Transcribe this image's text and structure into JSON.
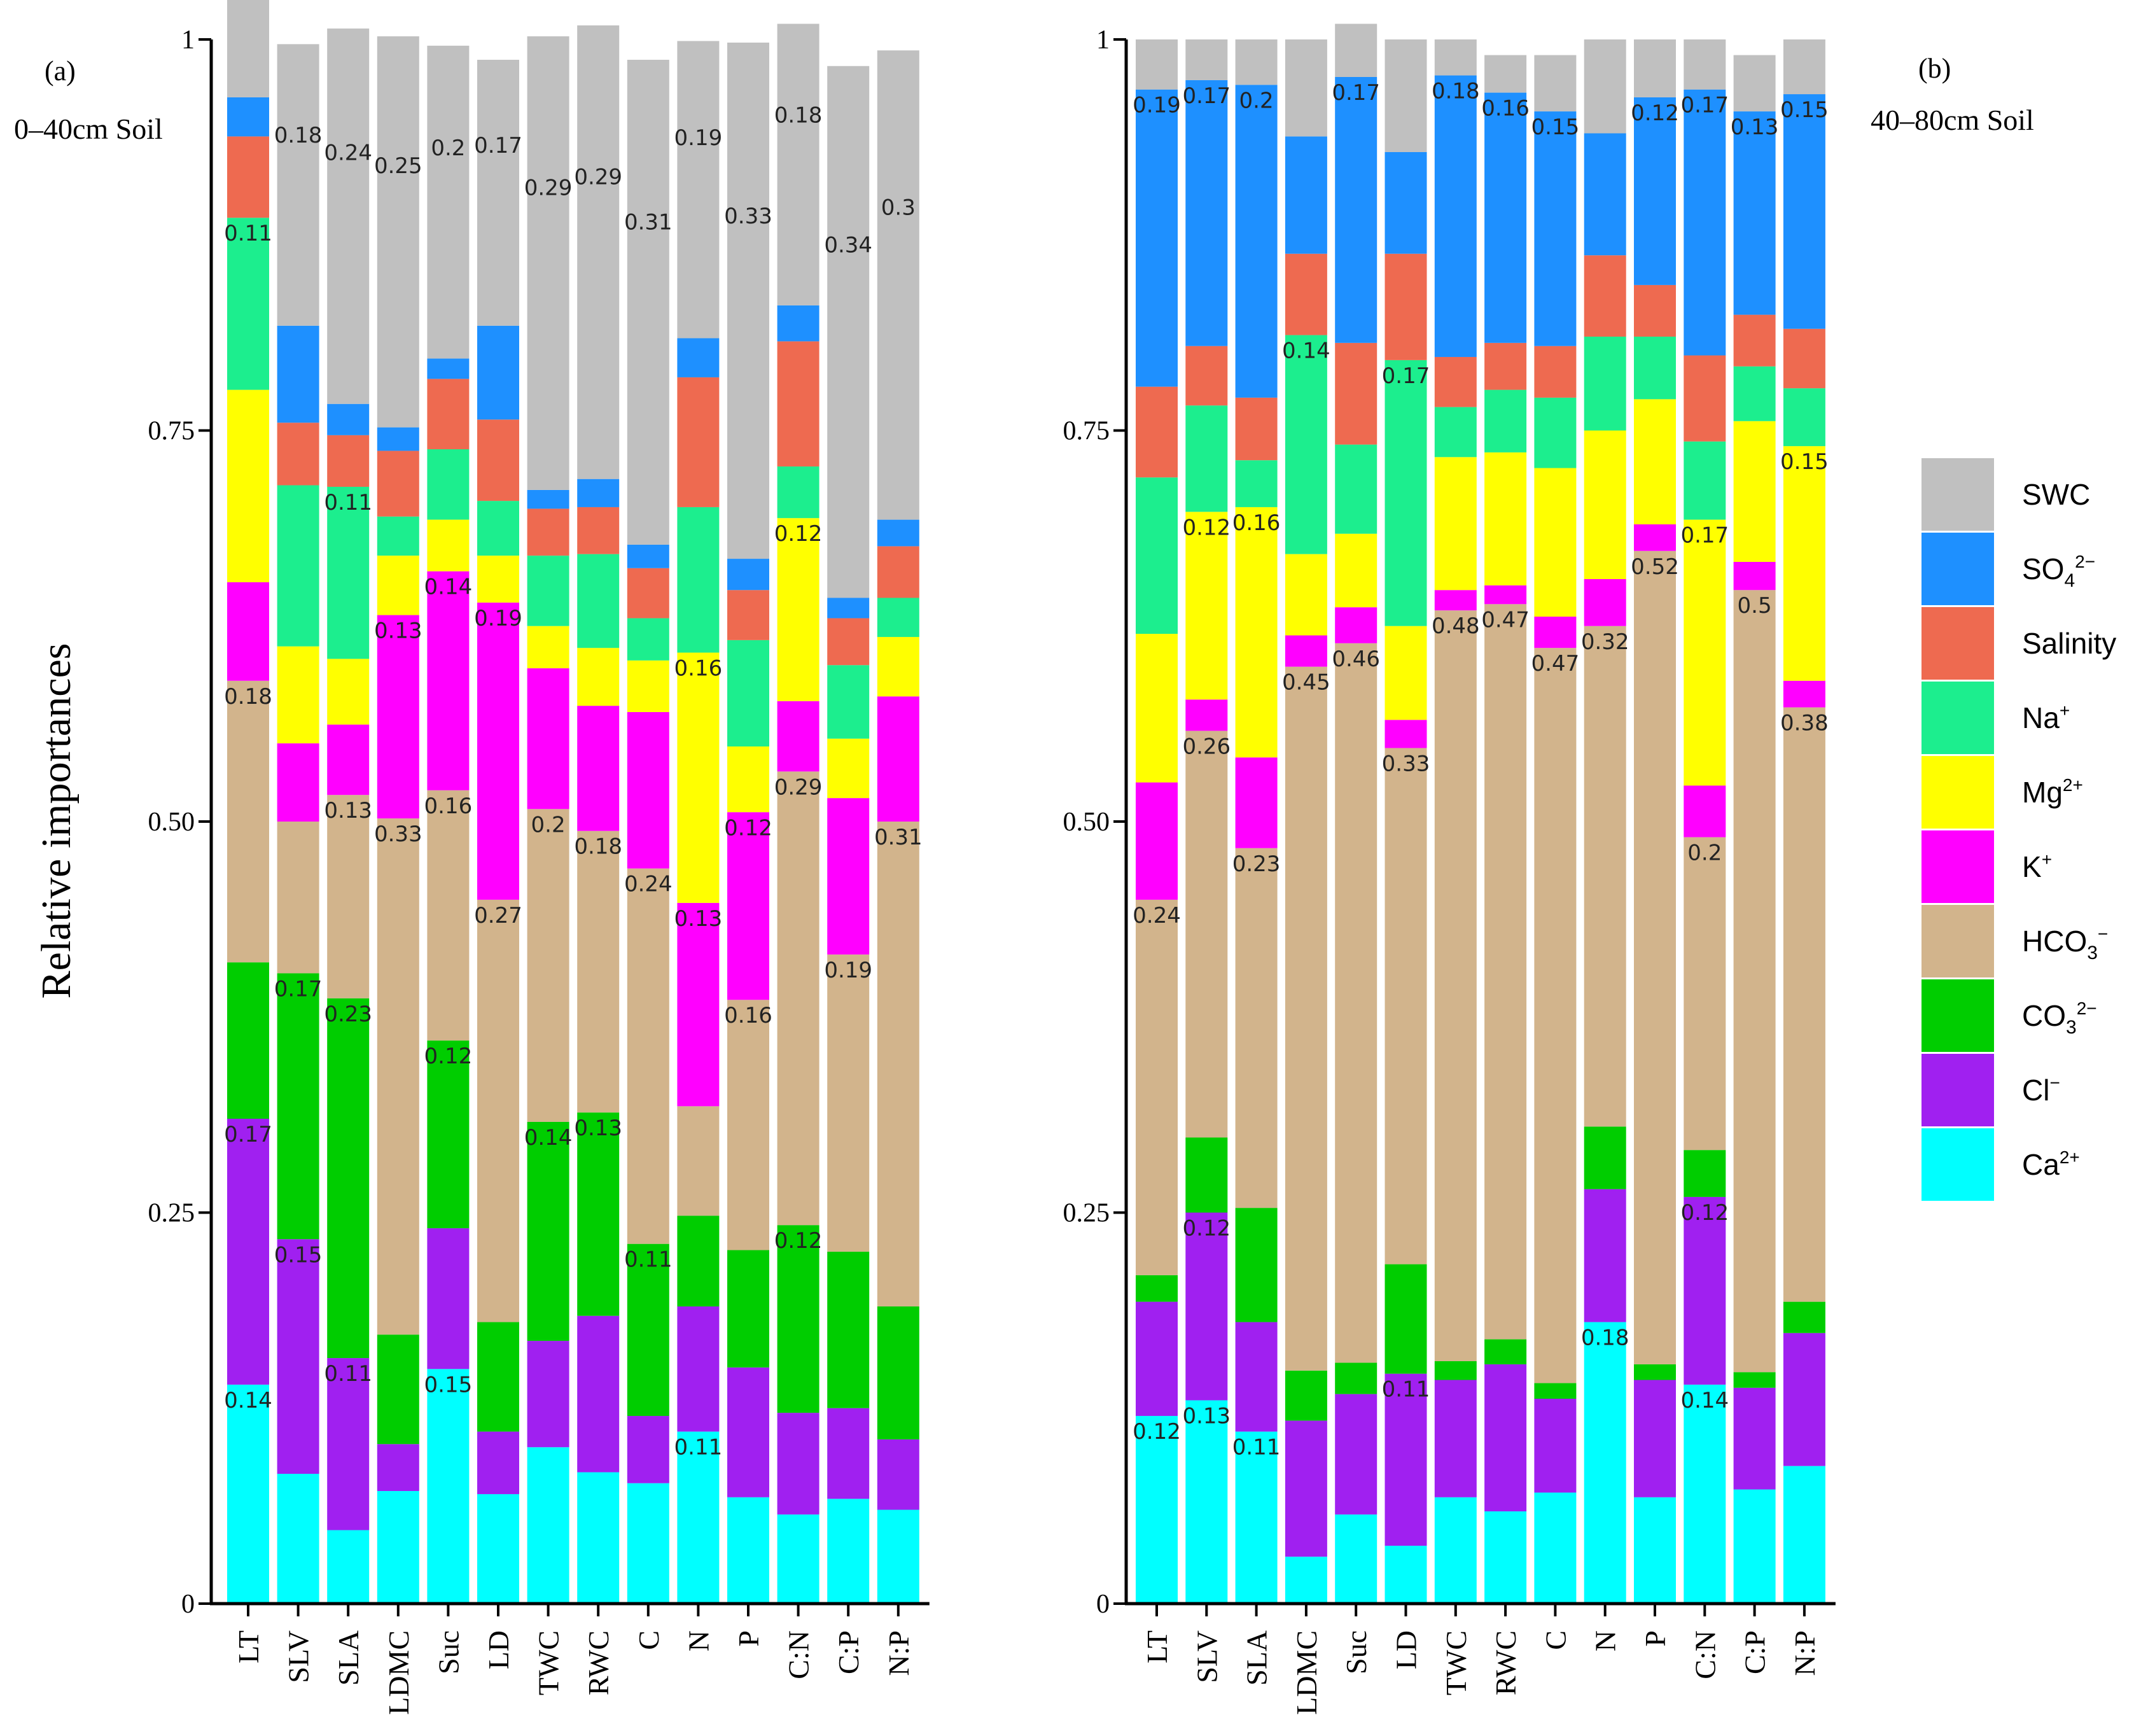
{
  "ylabel": "Relative importances",
  "legend": [
    "SWC",
    "SO4 2−",
    "Salinity",
    "Na+",
    "Mg2+",
    "K+",
    "HCO3 −",
    "CO3 2−",
    "Cl−",
    "Ca2+"
  ],
  "chart_data": [
    {
      "type": "bar",
      "stacked": true,
      "panel_label": "(a)",
      "depth_label": "0–40cm Soil",
      "ylabel": "Relative importances",
      "ylim": [
        0,
        1
      ],
      "yticks": [
        "0",
        "0.25",
        "0.50",
        "0.75",
        "1"
      ],
      "categories": [
        "LT",
        "SLV",
        "SLA",
        "LDMC",
        "Suc",
        "LD",
        "TWC",
        "RWC",
        "C",
        "N",
        "P",
        "C:N",
        "C:P",
        "N:P"
      ],
      "series": [
        {
          "name": "Ca2+",
          "color": "#00ffff",
          "values": [
            0.14,
            0.083,
            0.047,
            0.072,
            0.15,
            0.07,
            0.1,
            0.084,
            0.077,
            0.11,
            0.068,
            0.057,
            0.067,
            0.06
          ]
        },
        {
          "name": "Cl−",
          "color": "#a020f0",
          "values": [
            0.17,
            0.15,
            0.11,
            0.03,
            0.09,
            0.04,
            0.068,
            0.1,
            0.043,
            0.08,
            0.083,
            0.065,
            0.058,
            0.045
          ]
        },
        {
          "name": "CO3 2−",
          "color": "#00cd00",
          "values": [
            0.1,
            0.17,
            0.23,
            0.07,
            0.12,
            0.07,
            0.14,
            0.13,
            0.11,
            0.058,
            0.075,
            0.12,
            0.1,
            0.085
          ]
        },
        {
          "name": "HCO3 −",
          "color": "#d2b48c",
          "values": [
            0.18,
            0.097,
            0.13,
            0.33,
            0.16,
            0.27,
            0.2,
            0.18,
            0.24,
            0.07,
            0.16,
            0.29,
            0.19,
            0.31
          ]
        },
        {
          "name": "K+",
          "color": "#ff00ff",
          "values": [
            0.063,
            0.05,
            0.045,
            0.13,
            0.14,
            0.19,
            0.09,
            0.08,
            0.1,
            0.13,
            0.12,
            0.045,
            0.1,
            0.08
          ]
        },
        {
          "name": "Mg2+",
          "color": "#ffff00",
          "values": [
            0.123,
            0.062,
            0.042,
            0.038,
            0.033,
            0.03,
            0.027,
            0.037,
            0.033,
            0.16,
            0.042,
            0.117,
            0.038,
            0.038
          ]
        },
        {
          "name": "Na+",
          "color": "#1cee8e",
          "values": [
            0.11,
            0.103,
            0.11,
            0.025,
            0.045,
            0.035,
            0.045,
            0.06,
            0.027,
            0.093,
            0.068,
            0.033,
            0.047,
            0.025
          ]
        },
        {
          "name": "Salinity",
          "color": "#ee6a50",
          "values": [
            0.052,
            0.04,
            0.033,
            0.042,
            0.045,
            0.052,
            0.03,
            0.03,
            0.032,
            0.083,
            0.032,
            0.08,
            0.03,
            0.033
          ]
        },
        {
          "name": "SO4 2−",
          "color": "#1e90ff",
          "values": [
            0.025,
            0.062,
            0.02,
            0.015,
            0.013,
            0.06,
            0.012,
            0.018,
            0.015,
            0.025,
            0.02,
            0.023,
            0.013,
            0.017
          ]
        },
        {
          "name": "SWC",
          "color": "#c0c0c0",
          "values": [
            0.11,
            0.18,
            0.24,
            0.25,
            0.2,
            0.17,
            0.29,
            0.29,
            0.31,
            0.19,
            0.33,
            0.18,
            0.34,
            0.3
          ]
        }
      ],
      "data_labels": [
        {
          "category": "LT",
          "series": "Ca2+",
          "text": "0.14"
        },
        {
          "category": "LT",
          "series": "Cl−",
          "text": "0.17"
        },
        {
          "category": "LT",
          "series": "HCO3 −",
          "text": "0.18"
        },
        {
          "category": "LT",
          "series": "Na+",
          "text": "0.11"
        },
        {
          "category": "SLV",
          "series": "Cl−",
          "text": "0.15"
        },
        {
          "category": "SLV",
          "series": "CO3 2−",
          "text": "0.17"
        },
        {
          "category": "SLV",
          "series": "SWC",
          "text": "0.18"
        },
        {
          "category": "SLA",
          "series": "Cl−",
          "text": "0.11"
        },
        {
          "category": "SLA",
          "series": "CO3 2−",
          "text": "0.23"
        },
        {
          "category": "SLA",
          "series": "HCO3 −",
          "text": "0.13"
        },
        {
          "category": "SLA",
          "series": "Na+",
          "text": "0.11"
        },
        {
          "category": "SLA",
          "series": "SWC",
          "text": "0.24"
        },
        {
          "category": "LDMC",
          "series": "HCO3 −",
          "text": "0.33"
        },
        {
          "category": "LDMC",
          "series": "K+",
          "text": "0.13"
        },
        {
          "category": "LDMC",
          "series": "SWC",
          "text": "0.25"
        },
        {
          "category": "Suc",
          "series": "Ca2+",
          "text": "0.15"
        },
        {
          "category": "Suc",
          "series": "CO3 2−",
          "text": "0.12"
        },
        {
          "category": "Suc",
          "series": "HCO3 −",
          "text": "0.16"
        },
        {
          "category": "Suc",
          "series": "K+",
          "text": "0.14"
        },
        {
          "category": "Suc",
          "series": "SWC",
          "text": "0.2"
        },
        {
          "category": "LD",
          "series": "HCO3 −",
          "text": "0.27"
        },
        {
          "category": "LD",
          "series": "K+",
          "text": "0.19"
        },
        {
          "category": "LD",
          "series": "SWC",
          "text": "0.17"
        },
        {
          "category": "TWC",
          "series": "CO3 2−",
          "text": "0.14"
        },
        {
          "category": "TWC",
          "series": "HCO3 −",
          "text": "0.2"
        },
        {
          "category": "TWC",
          "series": "SWC",
          "text": "0.29"
        },
        {
          "category": "RWC",
          "series": "CO3 2−",
          "text": "0.13"
        },
        {
          "category": "RWC",
          "series": "HCO3 −",
          "text": "0.18"
        },
        {
          "category": "RWC",
          "series": "SWC",
          "text": "0.29"
        },
        {
          "category": "C",
          "series": "CO3 2−",
          "text": "0.11"
        },
        {
          "category": "C",
          "series": "HCO3 −",
          "text": "0.24"
        },
        {
          "category": "C",
          "series": "SWC",
          "text": "0.31"
        },
        {
          "category": "N",
          "series": "Ca2+",
          "text": "0.11"
        },
        {
          "category": "N",
          "series": "K+",
          "text": "0.13"
        },
        {
          "category": "N",
          "series": "Mg2+",
          "text": "0.16"
        },
        {
          "category": "N",
          "series": "SWC",
          "text": "0.19"
        },
        {
          "category": "P",
          "series": "HCO3 −",
          "text": "0.16"
        },
        {
          "category": "P",
          "series": "K+",
          "text": "0.12"
        },
        {
          "category": "P",
          "series": "SWC",
          "text": "0.33"
        },
        {
          "category": "C:N",
          "series": "CO3 2−",
          "text": "0.12"
        },
        {
          "category": "C:N",
          "series": "HCO3 −",
          "text": "0.29"
        },
        {
          "category": "C:N",
          "series": "Mg2+",
          "text": "0.12"
        },
        {
          "category": "C:N",
          "series": "SWC",
          "text": "0.18"
        },
        {
          "category": "C:P",
          "series": "HCO3 −",
          "text": "0.19"
        },
        {
          "category": "C:P",
          "series": "SWC",
          "text": "0.34"
        },
        {
          "category": "N:P",
          "series": "HCO3 −",
          "text": "0.31"
        },
        {
          "category": "N:P",
          "series": "SWC",
          "text": "0.3"
        }
      ]
    },
    {
      "type": "bar",
      "stacked": true,
      "panel_label": "(b)",
      "depth_label": "40–80cm Soil",
      "ylim": [
        0,
        1
      ],
      "yticks": [
        "0",
        "0.25",
        "0.50",
        "0.75",
        "1"
      ],
      "categories": [
        "LT",
        "SLV",
        "SLA",
        "LDMC",
        "Suc",
        "LD",
        "TWC",
        "RWC",
        "C",
        "N",
        "P",
        "C:N",
        "C:P",
        "N:P"
      ],
      "series": [
        {
          "name": "Ca2+",
          "color": "#00ffff",
          "values": [
            0.12,
            0.13,
            0.11,
            0.03,
            0.057,
            0.037,
            0.068,
            0.059,
            0.071,
            0.18,
            0.068,
            0.14,
            0.073,
            0.088
          ]
        },
        {
          "name": "Cl−",
          "color": "#a020f0",
          "values": [
            0.073,
            0.12,
            0.07,
            0.087,
            0.077,
            0.11,
            0.075,
            0.094,
            0.06,
            0.085,
            0.075,
            0.12,
            0.065,
            0.085
          ]
        },
        {
          "name": "CO3 2−",
          "color": "#00cd00",
          "values": [
            0.017,
            0.048,
            0.073,
            0.032,
            0.02,
            0.07,
            0.012,
            0.016,
            0.01,
            0.04,
            0.01,
            0.03,
            0.01,
            0.02
          ]
        },
        {
          "name": "HCO3 −",
          "color": "#d2b48c",
          "values": [
            0.24,
            0.26,
            0.23,
            0.45,
            0.46,
            0.33,
            0.48,
            0.47,
            0.47,
            0.32,
            0.52,
            0.2,
            0.5,
            0.38
          ]
        },
        {
          "name": "K+",
          "color": "#ff00ff",
          "values": [
            0.075,
            0.02,
            0.058,
            0.02,
            0.023,
            0.018,
            0.013,
            0.012,
            0.02,
            0.03,
            0.017,
            0.033,
            0.018,
            0.017
          ]
        },
        {
          "name": "Mg2+",
          "color": "#ffff00",
          "values": [
            0.095,
            0.12,
            0.16,
            0.052,
            0.047,
            0.06,
            0.085,
            0.085,
            0.095,
            0.095,
            0.08,
            0.17,
            0.09,
            0.15
          ]
        },
        {
          "name": "Na+",
          "color": "#1cee8e",
          "values": [
            0.1,
            0.068,
            0.03,
            0.14,
            0.057,
            0.17,
            0.032,
            0.04,
            0.045,
            0.06,
            0.04,
            0.05,
            0.035,
            0.037
          ]
        },
        {
          "name": "Salinity",
          "color": "#ee6a50",
          "values": [
            0.058,
            0.038,
            0.04,
            0.052,
            0.065,
            0.068,
            0.032,
            0.03,
            0.033,
            0.052,
            0.033,
            0.055,
            0.033,
            0.038
          ]
        },
        {
          "name": "SO4 2−",
          "color": "#1e90ff",
          "values": [
            0.19,
            0.17,
            0.2,
            0.075,
            0.17,
            0.065,
            0.18,
            0.16,
            0.15,
            0.078,
            0.12,
            0.17,
            0.13,
            0.15
          ]
        },
        {
          "name": "SWC",
          "color": "#c0c0c0",
          "values": [
            0.032,
            0.026,
            0.029,
            0.062,
            0.034,
            0.072,
            0.023,
            0.024,
            0.036,
            0.06,
            0.037,
            0.032,
            0.036,
            0.035
          ]
        }
      ],
      "data_labels": [
        {
          "category": "LT",
          "series": "Ca2+",
          "text": "0.12"
        },
        {
          "category": "LT",
          "series": "HCO3 −",
          "text": "0.24"
        },
        {
          "category": "LT",
          "series": "SO4 2−",
          "text": "0.19"
        },
        {
          "category": "SLV",
          "series": "Ca2+",
          "text": "0.13"
        },
        {
          "category": "SLV",
          "series": "Cl−",
          "text": "0.12"
        },
        {
          "category": "SLV",
          "series": "HCO3 −",
          "text": "0.26"
        },
        {
          "category": "SLV",
          "series": "Mg2+",
          "text": "0.12"
        },
        {
          "category": "SLV",
          "series": "SO4 2−",
          "text": "0.17"
        },
        {
          "category": "SLA",
          "series": "Ca2+",
          "text": "0.11"
        },
        {
          "category": "SLA",
          "series": "HCO3 −",
          "text": "0.23"
        },
        {
          "category": "SLA",
          "series": "Mg2+",
          "text": "0.16"
        },
        {
          "category": "SLA",
          "series": "SO4 2−",
          "text": "0.2"
        },
        {
          "category": "LDMC",
          "series": "HCO3 −",
          "text": "0.45"
        },
        {
          "category": "LDMC",
          "series": "Na+",
          "text": "0.14"
        },
        {
          "category": "Suc",
          "series": "HCO3 −",
          "text": "0.46"
        },
        {
          "category": "Suc",
          "series": "SO4 2−",
          "text": "0.17"
        },
        {
          "category": "LD",
          "series": "Cl−",
          "text": "0.11"
        },
        {
          "category": "LD",
          "series": "HCO3 −",
          "text": "0.33"
        },
        {
          "category": "LD",
          "series": "Na+",
          "text": "0.17"
        },
        {
          "category": "TWC",
          "series": "HCO3 −",
          "text": "0.48"
        },
        {
          "category": "TWC",
          "series": "SO4 2−",
          "text": "0.18"
        },
        {
          "category": "RWC",
          "series": "HCO3 −",
          "text": "0.47"
        },
        {
          "category": "RWC",
          "series": "SO4 2−",
          "text": "0.16"
        },
        {
          "category": "C",
          "series": "HCO3 −",
          "text": "0.47"
        },
        {
          "category": "C",
          "series": "SO4 2−",
          "text": "0.15"
        },
        {
          "category": "N",
          "series": "Ca2+",
          "text": "0.18"
        },
        {
          "category": "N",
          "series": "HCO3 −",
          "text": "0.32"
        },
        {
          "category": "P",
          "series": "HCO3 −",
          "text": "0.52"
        },
        {
          "category": "P",
          "series": "SO4 2−",
          "text": "0.12"
        },
        {
          "category": "C:N",
          "series": "Ca2+",
          "text": "0.14"
        },
        {
          "category": "C:N",
          "series": "Cl−",
          "text": "0.12"
        },
        {
          "category": "C:N",
          "series": "HCO3 −",
          "text": "0.2"
        },
        {
          "category": "C:N",
          "series": "Mg2+",
          "text": "0.17"
        },
        {
          "category": "C:N",
          "series": "SO4 2−",
          "text": "0.17"
        },
        {
          "category": "C:P",
          "series": "HCO3 −",
          "text": "0.5"
        },
        {
          "category": "C:P",
          "series": "SO4 2−",
          "text": "0.13"
        },
        {
          "category": "N:P",
          "series": "HCO3 −",
          "text": "0.38"
        },
        {
          "category": "N:P",
          "series": "Mg2+",
          "text": "0.15"
        },
        {
          "category": "N:P",
          "series": "SO4 2−",
          "text": "0.15"
        }
      ]
    }
  ]
}
